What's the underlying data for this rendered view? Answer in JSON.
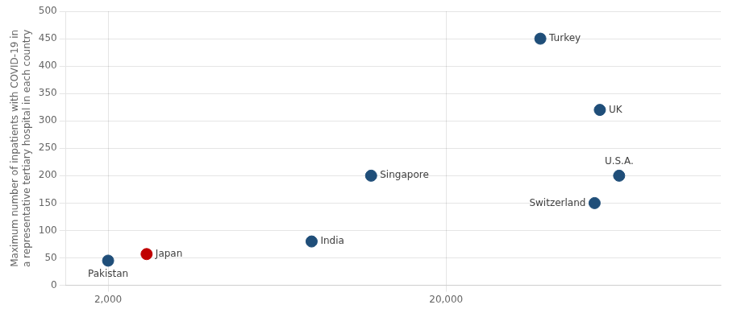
{
  "chart_data": {
    "type": "scatter",
    "ylabel": "Maximum number of inpatients with COVID-19 in\na representative tertiary hospital in each country",
    "x": [
      2000,
      2600,
      8000,
      12000,
      38000,
      57000,
      55000,
      65000
    ],
    "values": [
      45,
      57,
      80,
      200,
      450,
      320,
      150,
      200
    ],
    "annotations": [
      "Pakistan",
      "Japan",
      "India",
      "Singapore",
      "Turkey",
      "UK",
      "Switzerland",
      "U.S.A."
    ],
    "colors": [
      "#1f4e79",
      "#c00000",
      "#1f4e79",
      "#1f4e79",
      "#1f4e79",
      "#1f4e79",
      "#1f4e79",
      "#1f4e79"
    ],
    "log": "x",
    "xlim": [
      1500,
      130000
    ],
    "xticks": [
      {
        "value": 2000,
        "label": "2,000"
      },
      {
        "value": 20000,
        "label": "20,000"
      }
    ],
    "ylim": [
      0,
      500
    ],
    "yticks": [
      0,
      50,
      100,
      150,
      200,
      250,
      300,
      350,
      400,
      450,
      500
    ],
    "grid": true
  }
}
